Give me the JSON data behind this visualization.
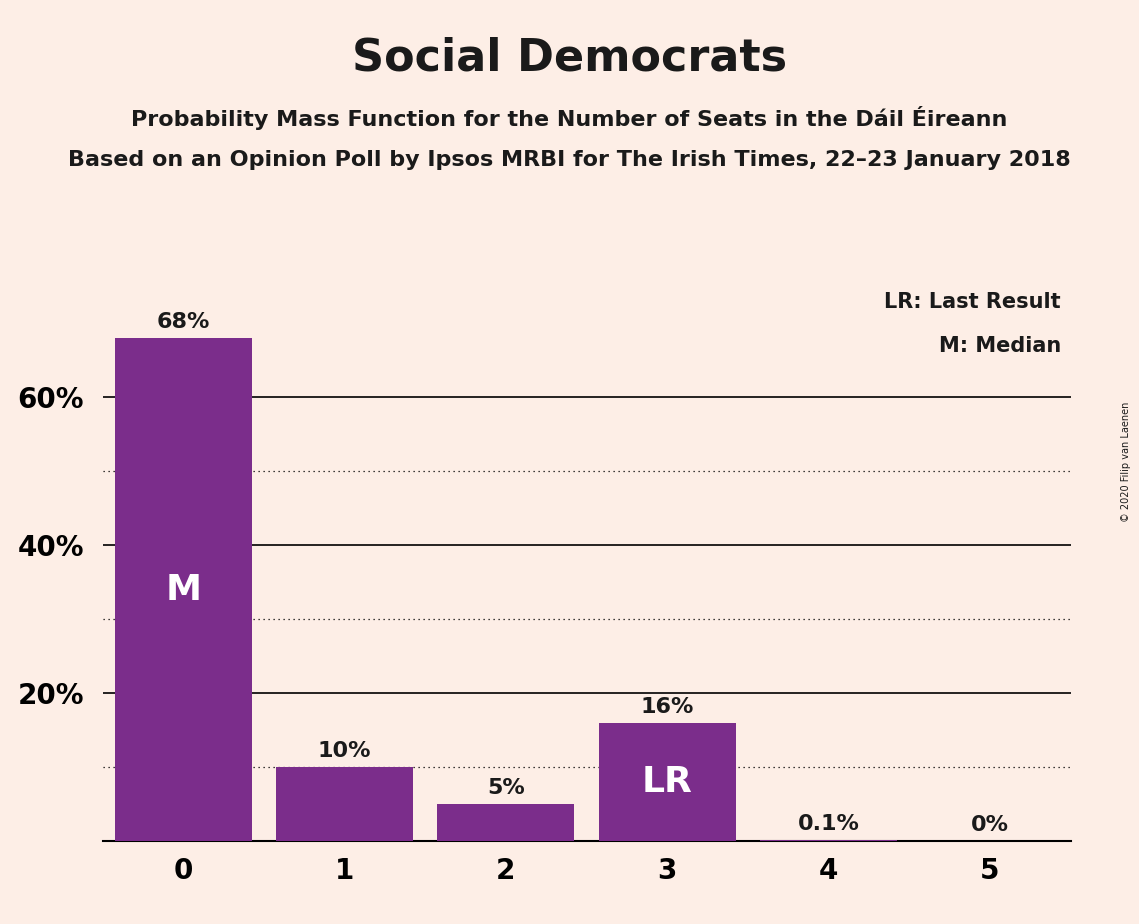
{
  "title": "Social Democrats",
  "subtitle1": "Probability Mass Function for the Number of Seats in the Dáil Éireann",
  "subtitle2": "Based on an Opinion Poll by Ipsos MRBI for The Irish Times, 22–23 January 2018",
  "copyright": "© 2020 Filip van Laenen",
  "categories": [
    0,
    1,
    2,
    3,
    4,
    5
  ],
  "values": [
    0.68,
    0.1,
    0.05,
    0.16,
    0.001,
    0.0
  ],
  "bar_color": "#7b2d8b",
  "background_color": "#fdeee6",
  "text_color": "#1a1a1a",
  "label_texts": [
    "68%",
    "10%",
    "5%",
    "16%",
    "0.1%",
    "0%"
  ],
  "bar_labels": [
    "M",
    "",
    "",
    "LR",
    "",
    ""
  ],
  "bar_label_color": "#ffffff",
  "ylim": [
    0,
    0.75
  ],
  "yticks": [
    0.2,
    0.4,
    0.6
  ],
  "ytick_labels": [
    "20%",
    "40%",
    "60%"
  ],
  "solid_grid": [
    0.2,
    0.4,
    0.6
  ],
  "dotted_grid": [
    0.1,
    0.3,
    0.5
  ],
  "legend_lr": "LR: Last Result",
  "legend_m": "M: Median"
}
